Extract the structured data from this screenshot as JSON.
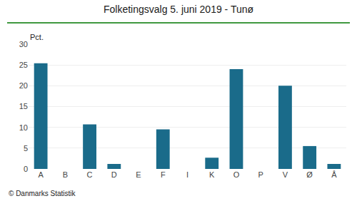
{
  "chart_data": {
    "type": "bar",
    "title": "Folketingsvalg 5. juni 2019 - Tunø",
    "categories": [
      "A",
      "B",
      "C",
      "D",
      "E",
      "F",
      "I",
      "K",
      "O",
      "P",
      "V",
      "Ø",
      "Å"
    ],
    "values": [
      25.4,
      0.0,
      10.7,
      1.2,
      0.0,
      9.5,
      0.0,
      2.7,
      24.0,
      0.0,
      20.0,
      5.5,
      1.2
    ],
    "color": "#1a6b8a",
    "ylabel": "Pct.",
    "annotations": [
      "© Danmarks Statistik"
    ],
    "ylim": [
      0,
      30
    ],
    "yticks": [
      0,
      5,
      10,
      15,
      20,
      25,
      30
    ],
    "grid": true
  }
}
